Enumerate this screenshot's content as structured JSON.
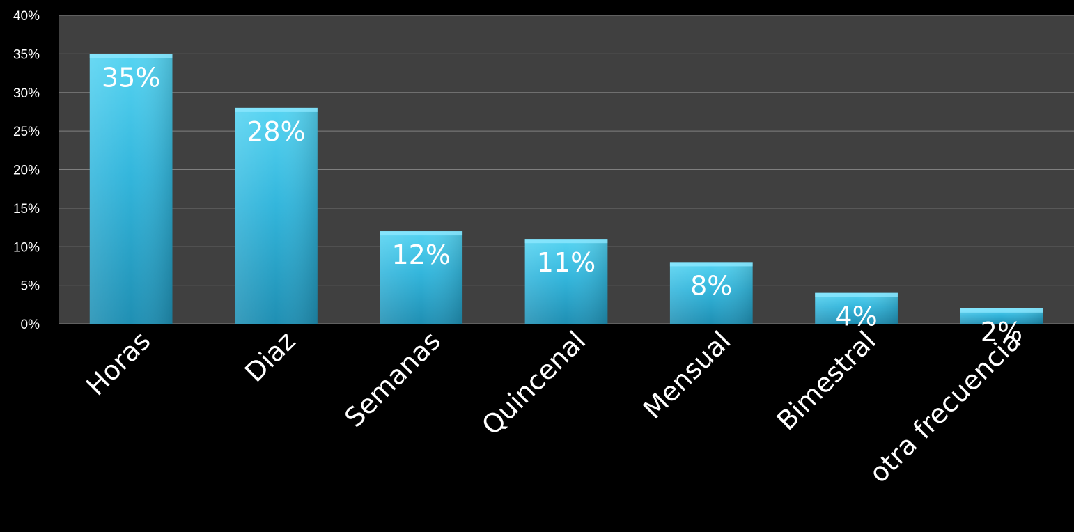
{
  "chart_data": {
    "type": "bar",
    "categories": [
      "Horas",
      "Diaz",
      "Semanas",
      "Quincenal",
      "Mensual",
      "Bimestral",
      "otra frecuencia"
    ],
    "values": [
      35,
      28,
      12,
      11,
      8,
      4,
      2
    ],
    "data_labels": [
      "35%",
      "28%",
      "12%",
      "11%",
      "8%",
      "4%",
      "2%"
    ],
    "y_ticks": [
      "0%",
      "5%",
      "10%",
      "15%",
      "20%",
      "25%",
      "30%",
      "35%",
      "40%"
    ],
    "ylim": [
      0,
      40
    ],
    "ystep": 5,
    "title": "",
    "xlabel": "",
    "ylabel": "",
    "grid": true,
    "legend": "none"
  },
  "colors": {
    "background": "#000000",
    "plot_area": "#404040",
    "gridline": "#7f7f7f",
    "bar_top": "#56d4f2",
    "bar_mid": "#33b6dc",
    "bar_bottom": "#1f8fb3",
    "text": "#ffffff"
  }
}
